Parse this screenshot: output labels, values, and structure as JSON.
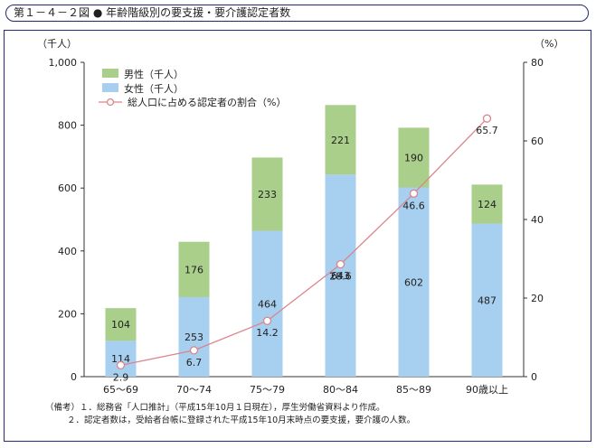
{
  "figure_title": "第１－４－２図 ● 年齢階級別の要支援・要介護認定者数",
  "colors": {
    "male": "#a9cf8a",
    "female": "#a7cfef",
    "line": "#d9858b",
    "frame": "#2a2a7a"
  },
  "chart_data": {
    "type": "bar",
    "stacked": true,
    "categories": [
      "65〜69",
      "70〜74",
      "75〜79",
      "80〜84",
      "85〜89",
      "90歳以上"
    ],
    "series": [
      {
        "name": "女性（千人）",
        "values": [
          114,
          253,
          464,
          643,
          602,
          487
        ],
        "axis": "left"
      },
      {
        "name": "男性（千人）",
        "values": [
          104,
          176,
          233,
          221,
          190,
          124
        ],
        "axis": "left"
      }
    ],
    "line_series": {
      "name": "総人口に占める認定者の割合（%）",
      "values": [
        2.9,
        6.7,
        14.2,
        28.6,
        46.6,
        65.7
      ],
      "axis": "right"
    },
    "ylabel_left": "（千人）",
    "ylabel_right": "（%）",
    "ylim_left": [
      0,
      1000
    ],
    "yticks_left": [
      "0",
      "200",
      "400",
      "600",
      "800",
      "1,000"
    ],
    "ylim_right": [
      0,
      80
    ],
    "yticks_right": [
      "0",
      "20",
      "40",
      "60",
      "80"
    ],
    "legend": [
      "男性（千人）",
      "女性（千人）",
      "総人口に占める認定者の割合（%）"
    ],
    "legend_position": "top-left",
    "grid": false
  },
  "notes": [
    "（備考）１．総務省「人口推計」（平成15年10月１日現在），厚生労働省資料より作成。",
    "２．認定者数は，受給者台帳に登録された平成15年10月末時点の要支援，要介護の人数。"
  ]
}
